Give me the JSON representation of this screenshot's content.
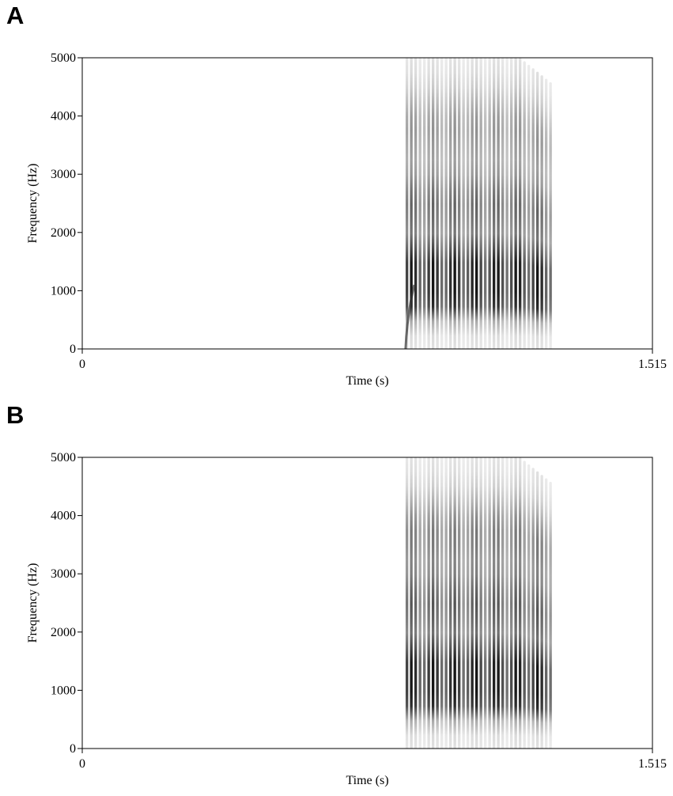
{
  "chart_data": [
    {
      "type": "heatmap",
      "panel": "A",
      "xlabel": "Time (s)",
      "ylabel": "Frequency (Hz)",
      "xlim": [
        0,
        1.515
      ],
      "ylim": [
        0,
        5000
      ],
      "x_tick_labels": [
        "0",
        "1.515"
      ],
      "y_tick_labels": [
        "0",
        "1000",
        "2000",
        "3000",
        "4000",
        "5000"
      ],
      "grid": false,
      "signal": {
        "start_s": 0.857,
        "end_s": 1.25,
        "pulse_count": 34,
        "energy_bands_hz": [
          {
            "center": 1000,
            "level": 1.0
          },
          {
            "center": 1400,
            "level": 0.9
          },
          {
            "center": 2450,
            "level": 0.55
          },
          {
            "center": 3800,
            "level": 0.35
          }
        ],
        "onset_glide": true
      }
    },
    {
      "type": "heatmap",
      "panel": "B",
      "xlabel": "Time (s)",
      "ylabel": "Frequency (Hz)",
      "xlim": [
        0,
        1.515
      ],
      "ylim": [
        0,
        5000
      ],
      "x_tick_labels": [
        "0",
        "1.515"
      ],
      "y_tick_labels": [
        "0",
        "1000",
        "2000",
        "3000",
        "4000",
        "5000"
      ],
      "grid": false,
      "signal": {
        "start_s": 0.857,
        "end_s": 1.25,
        "pulse_count": 34,
        "energy_bands_hz": [
          {
            "center": 1000,
            "level": 1.0
          },
          {
            "center": 1400,
            "level": 0.9
          },
          {
            "center": 2450,
            "level": 0.6
          },
          {
            "center": 3700,
            "level": 0.45
          }
        ],
        "onset_glide": false
      }
    }
  ],
  "panels": [
    "A",
    "B"
  ]
}
